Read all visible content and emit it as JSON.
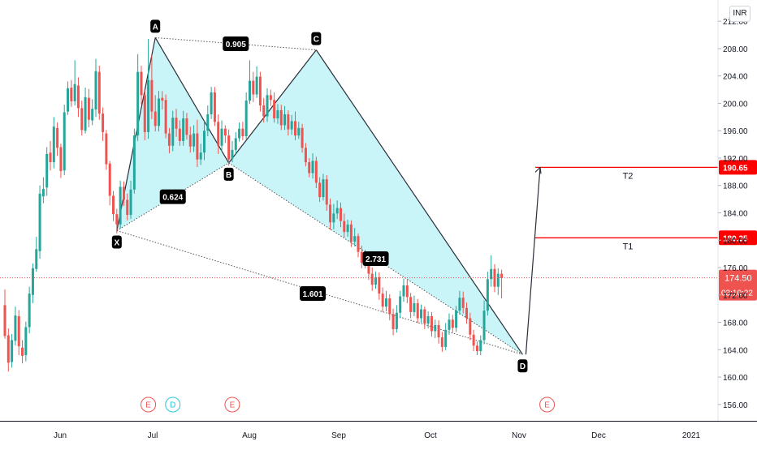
{
  "currency_badge": "INR",
  "chart_data": {
    "type": "candlestick",
    "y_axis": {
      "ticks": [
        "156.00",
        "160.00",
        "164.00",
        "168.00",
        "172.00",
        "176.00",
        "180.00",
        "184.00",
        "188.00",
        "192.00",
        "196.00",
        "200.00",
        "204.00",
        "208.00",
        "212.00"
      ],
      "range": [
        154.5,
        213.5
      ]
    },
    "x_axis": {
      "ticks": [
        "Jun",
        "Jul",
        "Aug",
        "Sep",
        "Oct",
        "Nov",
        "Dec",
        "2021"
      ]
    },
    "candles": [
      [
        170.5,
        166.0,
        172.8,
        165.6
      ],
      [
        166.1,
        162.1,
        167.1,
        160.8
      ],
      [
        162.2,
        165.4,
        166.3,
        161.4
      ],
      [
        165.3,
        169.0,
        170.3,
        164.6
      ],
      [
        168.9,
        164.5,
        169.8,
        163.2
      ],
      [
        164.3,
        163.1,
        165.4,
        162.0
      ],
      [
        163.2,
        167.3,
        168.1,
        162.3
      ],
      [
        167.3,
        172.2,
        173.2,
        166.4
      ],
      [
        172.0,
        175.9,
        176.6,
        170.8
      ],
      [
        175.8,
        178.7,
        180.5,
        175.4
      ],
      [
        178.4,
        186.8,
        188.0,
        177.3
      ],
      [
        186.4,
        187.5,
        189.2,
        185.4
      ],
      [
        187.7,
        192.6,
        193.6,
        186.5
      ],
      [
        192.8,
        191.4,
        194.5,
        190.2
      ],
      [
        191.4,
        196.6,
        198.0,
        190.5
      ],
      [
        196.4,
        193.5,
        197.2,
        192.3
      ],
      [
        193.6,
        190.1,
        194.1,
        189.1
      ],
      [
        190.2,
        198.7,
        199.8,
        189.5
      ],
      [
        198.8,
        202.2,
        203.2,
        198.3
      ],
      [
        202.3,
        200.3,
        203.4,
        199.5
      ],
      [
        200.3,
        202.8,
        206.3,
        199.7
      ],
      [
        202.6,
        199.3,
        203.8,
        198.0
      ],
      [
        199.3,
        196.1,
        200.4,
        195.3
      ],
      [
        196.0,
        200.9,
        202.3,
        195.6
      ],
      [
        200.8,
        197.6,
        202.1,
        196.5
      ],
      [
        197.5,
        199.2,
        200.6,
        196.8
      ],
      [
        199.1,
        204.7,
        206.5,
        198.0
      ],
      [
        204.6,
        198.5,
        205.5,
        197.6
      ],
      [
        198.5,
        195.8,
        199.4,
        194.5
      ],
      [
        195.6,
        191.1,
        196.1,
        190.3
      ],
      [
        191.2,
        186.5,
        191.6,
        185.1
      ],
      [
        186.5,
        183.8,
        187.2,
        182.8
      ],
      [
        183.8,
        182.3,
        184.6,
        181.0
      ],
      [
        182.3,
        187.8,
        188.7,
        181.7
      ],
      [
        187.8,
        185.9,
        188.6,
        185.0
      ],
      [
        185.9,
        183.7,
        186.8,
        182.9
      ],
      [
        183.7,
        187.4,
        188.7,
        183.1
      ],
      [
        187.4,
        195.3,
        196.3,
        186.8
      ],
      [
        195.3,
        204.6,
        207.2,
        194.5
      ],
      [
        204.6,
        201.2,
        205.5,
        199.8
      ],
      [
        201.2,
        195.8,
        202.0,
        194.6
      ],
      [
        195.8,
        203.4,
        209.4,
        194.8
      ],
      [
        203.4,
        198.8,
        207.1,
        197.7
      ],
      [
        198.8,
        196.7,
        201.2,
        195.9
      ],
      [
        196.7,
        200.7,
        201.8,
        195.9
      ],
      [
        200.8,
        200.4,
        201.8,
        199.1
      ],
      [
        200.5,
        195.6,
        201.3,
        194.9
      ],
      [
        195.6,
        193.8,
        196.4,
        192.7
      ],
      [
        193.8,
        197.9,
        198.9,
        193.0
      ],
      [
        197.9,
        196.3,
        199.2,
        195.1
      ],
      [
        196.3,
        194.5,
        197.5,
        193.8
      ],
      [
        194.5,
        197.8,
        198.9,
        193.8
      ],
      [
        197.8,
        195.4,
        198.6,
        194.7
      ],
      [
        195.4,
        193.7,
        196.6,
        192.8
      ],
      [
        193.7,
        195.6,
        196.8,
        192.9
      ],
      [
        195.6,
        191.8,
        197.6,
        190.7
      ],
      [
        191.8,
        192.8,
        194.1,
        191.0
      ],
      [
        192.8,
        196.0,
        197.4,
        191.7
      ],
      [
        196.0,
        198.4,
        199.7,
        195.2
      ],
      [
        198.4,
        201.6,
        202.4,
        197.7
      ],
      [
        201.6,
        197.3,
        202.4,
        196.7
      ],
      [
        197.3,
        193.8,
        198.4,
        192.6
      ],
      [
        193.8,
        196.3,
        197.5,
        193.0
      ],
      [
        196.3,
        195.3,
        196.8,
        194.2
      ],
      [
        195.3,
        191.8,
        196.2,
        190.9
      ],
      [
        191.9,
        193.2,
        194.5,
        191.4
      ],
      [
        193.2,
        194.9,
        195.8,
        192.6
      ],
      [
        194.9,
        196.3,
        197.2,
        194.4
      ],
      [
        196.3,
        195.2,
        197.3,
        194.6
      ],
      [
        195.2,
        200.4,
        201.6,
        194.7
      ],
      [
        200.4,
        203.3,
        206.3,
        199.9
      ],
      [
        203.3,
        201.3,
        204.6,
        200.2
      ],
      [
        201.3,
        203.9,
        205.4,
        200.8
      ],
      [
        203.9,
        199.7,
        204.6,
        198.8
      ],
      [
        199.7,
        198.1,
        200.8,
        197.2
      ],
      [
        198.1,
        201.2,
        202.2,
        197.3
      ],
      [
        201.2,
        200.5,
        202.0,
        199.6
      ],
      [
        200.5,
        197.8,
        201.6,
        197.2
      ],
      [
        197.8,
        199.0,
        199.9,
        197.0
      ],
      [
        199.0,
        196.8,
        199.8,
        196.1
      ],
      [
        196.8,
        198.4,
        199.6,
        196.1
      ],
      [
        198.4,
        196.2,
        199.0,
        195.3
      ],
      [
        196.2,
        197.4,
        198.3,
        195.4
      ],
      [
        197.4,
        195.3,
        198.8,
        194.6
      ],
      [
        195.3,
        196.4,
        197.3,
        194.8
      ],
      [
        196.4,
        193.5,
        197.0,
        192.8
      ],
      [
        193.5,
        191.4,
        194.2,
        190.8
      ],
      [
        191.4,
        189.8,
        192.0,
        189.2
      ],
      [
        189.8,
        191.6,
        192.7,
        189.0
      ],
      [
        191.6,
        188.4,
        192.2,
        187.6
      ],
      [
        188.4,
        186.3,
        189.2,
        185.6
      ],
      [
        186.3,
        188.9,
        189.7,
        185.8
      ],
      [
        188.9,
        185.2,
        189.5,
        184.3
      ],
      [
        185.2,
        182.6,
        186.1,
        181.5
      ],
      [
        182.6,
        183.9,
        185.3,
        181.6
      ],
      [
        183.9,
        184.7,
        185.8,
        183.1
      ],
      [
        184.7,
        182.8,
        185.5,
        181.9
      ],
      [
        182.8,
        181.2,
        183.9,
        180.4
      ],
      [
        181.2,
        182.3,
        183.0,
        180.5
      ],
      [
        182.3,
        179.8,
        182.9,
        179.0
      ],
      [
        179.8,
        180.6,
        181.8,
        179.1
      ],
      [
        180.6,
        178.3,
        181.0,
        177.5
      ],
      [
        178.3,
        176.7,
        179.2,
        175.9
      ],
      [
        176.7,
        177.8,
        178.6,
        175.9
      ],
      [
        177.8,
        175.1,
        178.3,
        174.2
      ],
      [
        175.1,
        173.5,
        176.0,
        172.6
      ],
      [
        173.5,
        174.6,
        175.4,
        172.9
      ],
      [
        174.6,
        172.2,
        175.3,
        171.3
      ],
      [
        172.2,
        170.3,
        173.1,
        169.5
      ],
      [
        170.3,
        171.5,
        172.6,
        169.6
      ],
      [
        171.5,
        169.2,
        172.1,
        168.3
      ],
      [
        169.2,
        167.0,
        170.0,
        166.1
      ],
      [
        167.0,
        169.4,
        170.5,
        166.5
      ],
      [
        169.4,
        171.8,
        172.6,
        168.6
      ],
      [
        171.8,
        173.4,
        174.4,
        171.0
      ],
      [
        173.4,
        171.7,
        174.3,
        170.8
      ],
      [
        171.7,
        169.5,
        172.3,
        168.6
      ],
      [
        169.5,
        170.8,
        171.9,
        168.9
      ],
      [
        170.8,
        168.6,
        171.4,
        167.9
      ],
      [
        168.6,
        169.9,
        170.6,
        167.9
      ],
      [
        169.9,
        167.8,
        170.3,
        167.0
      ],
      [
        167.8,
        168.9,
        169.6,
        167.1
      ],
      [
        168.9,
        166.7,
        169.5,
        165.9
      ],
      [
        166.7,
        167.6,
        168.4,
        165.7
      ],
      [
        167.6,
        165.8,
        168.3,
        164.9
      ],
      [
        165.8,
        164.4,
        166.6,
        163.7
      ],
      [
        164.4,
        166.9,
        167.9,
        163.9
      ],
      [
        166.9,
        168.4,
        169.3,
        166.2
      ],
      [
        168.4,
        167.2,
        169.1,
        166.5
      ],
      [
        167.2,
        169.7,
        170.4,
        166.6
      ],
      [
        169.7,
        171.6,
        172.6,
        169.1
      ],
      [
        171.6,
        170.1,
        172.5,
        169.3
      ],
      [
        170.1,
        168.6,
        170.9,
        167.8
      ],
      [
        168.6,
        166.2,
        169.4,
        165.4
      ],
      [
        166.2,
        164.6,
        166.9,
        163.8
      ],
      [
        164.6,
        163.8,
        165.2,
        163.2
      ],
      [
        163.8,
        165.4,
        166.1,
        163.2
      ],
      [
        165.4,
        169.7,
        171.2,
        164.8
      ],
      [
        169.7,
        174.3,
        175.4,
        169.0
      ],
      [
        174.3,
        175.8,
        177.8,
        173.2
      ],
      [
        175.8,
        173.2,
        176.5,
        172.4
      ],
      [
        173.2,
        175.1,
        175.9,
        172.0
      ],
      [
        175.1,
        174.5,
        175.7,
        171.5
      ]
    ],
    "last_price": "174.50",
    "countdown": "03:10:22",
    "pattern": {
      "points": [
        {
          "label": "X",
          "x": 32,
          "y": 181.4
        },
        {
          "label": "A",
          "x": 43,
          "y": 209.6
        },
        {
          "label": "B",
          "x": 64,
          "y": 191.3
        },
        {
          "label": "C",
          "x": 89,
          "y": 207.8
        },
        {
          "label": "D",
          "x": 148,
          "y": 163.3
        }
      ],
      "ratios": [
        {
          "label": "0.905",
          "from": "A",
          "to": "C"
        },
        {
          "label": "0.624",
          "from": "X",
          "to": "B"
        },
        {
          "label": "2.731",
          "from": "B",
          "to": "D"
        },
        {
          "label": "1.601",
          "from": "X",
          "to": "D"
        }
      ]
    },
    "targets": [
      {
        "name": "T2",
        "price": 190.65,
        "label": "190.65"
      },
      {
        "name": "T1",
        "price": 180.35,
        "label": "180.35"
      }
    ],
    "events": [
      {
        "letter": "E",
        "x": 41
      },
      {
        "letter": "D",
        "x": 48
      },
      {
        "letter": "E",
        "x": 65
      },
      {
        "letter": "E",
        "x": 155
      }
    ],
    "colors": {
      "up": "#26a69a",
      "down": "#ef5350",
      "pattern_fill": "#b7f2f6",
      "target_line": "#ff0000",
      "label_bg": "#000000",
      "price_tag": "#ef5350"
    }
  }
}
